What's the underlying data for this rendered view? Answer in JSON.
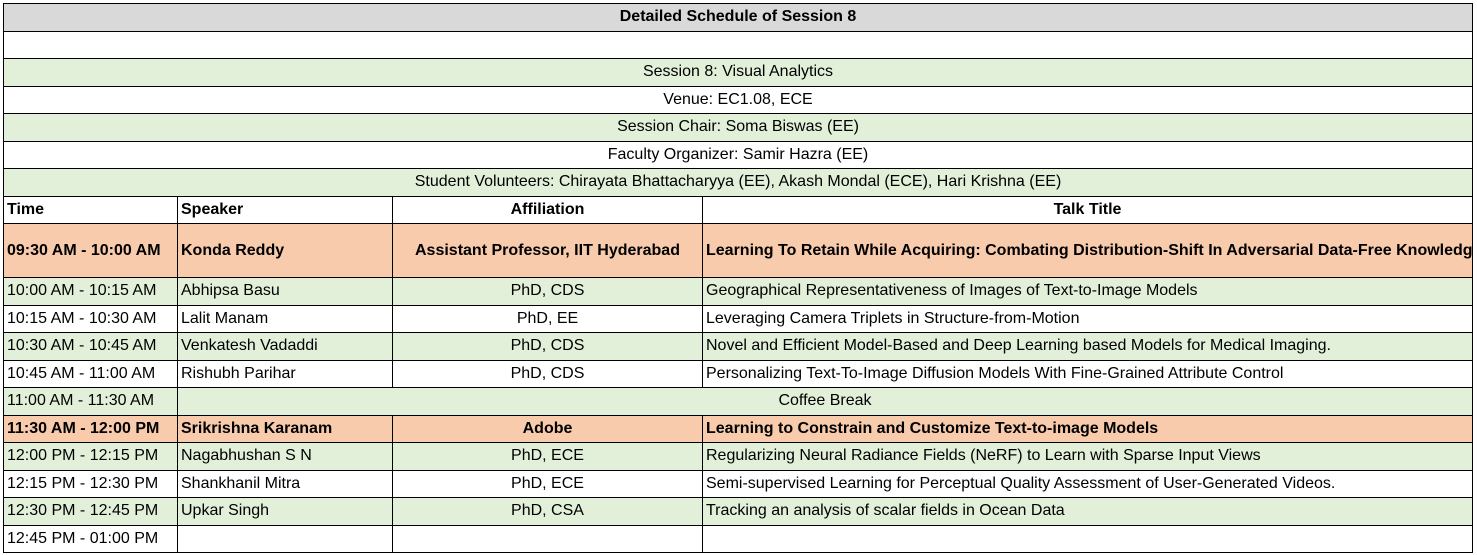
{
  "header": {
    "title": "Detailed Schedule of Session 8",
    "session": "Session 8: Visual Analytics",
    "venue": "Venue: EC1.08, ECE",
    "chair": "Session Chair: Soma Biswas (EE)",
    "organizer": "Faculty Organizer: Samir Hazra (EE)",
    "volunteers": "Student Volunteers: Chirayata Bhattacharyya (EE), Akash Mondal (ECE), Hari Krishna (EE)"
  },
  "columns": [
    "Time",
    "Speaker",
    "Affiliation",
    "Talk Title"
  ],
  "rows": [
    {
      "time": "09:30 AM - 10:00 AM",
      "speaker": "Konda Reddy",
      "affiliation": "Assistant Professor, IIT Hyderabad",
      "title": "Learning To Retain While Acquiring: Combating Distribution-Shift In Adversarial Data-Free Knowledge Distillation"
    },
    {
      "time": "10:00 AM - 10:15 AM",
      "speaker": "Abhipsa Basu",
      "affiliation": "PhD, CDS",
      "title": "Geographical Representativeness of Images of Text-to-Image Models"
    },
    {
      "time": "10:15 AM - 10:30 AM",
      "speaker": "Lalit Manam",
      "affiliation": "PhD, EE",
      "title": "Leveraging Camera Triplets in Structure-from-Motion"
    },
    {
      "time": "10:30 AM - 10:45 AM",
      "speaker": "Venkatesh Vadaddi",
      "affiliation": "PhD, CDS",
      "title": "Novel and Efficient Model-Based and Deep Learning based Models for Medical Imaging."
    },
    {
      "time": "10:45 AM - 11:00 AM",
      "speaker": "Rishubh Parihar",
      "affiliation": "PhD, CDS",
      "title": "Personalizing Text-To-Image Diffusion Models With Fine-Grained Attribute Control"
    },
    {
      "time": "11:00 AM - 11:30 AM",
      "break_label": "Coffee Break"
    },
    {
      "time": "11:30 AM - 12:00 PM",
      "speaker": "Srikrishna Karanam",
      "affiliation": "Adobe",
      "title": "Learning to Constrain and Customize Text-to-image Models"
    },
    {
      "time": "12:00 PM - 12:15 PM",
      "speaker": "Nagabhushan S N",
      "affiliation": "PhD, ECE",
      "title": "Regularizing Neural Radiance Fields (NeRF) to Learn with Sparse Input Views"
    },
    {
      "time": "12:15 PM - 12:30 PM",
      "speaker": "Shankhanil Mitra",
      "affiliation": "PhD, ECE",
      "title": "Semi-supervised Learning for Perceptual Quality Assessment of User-Generated Videos."
    },
    {
      "time": "12:30 PM - 12:45 PM",
      "speaker": "Upkar Singh",
      "affiliation": "PhD, CSA",
      "title": "Tracking an analysis of scalar fields in Ocean Data"
    },
    {
      "time": "12:45 PM - 01:00 PM",
      "speaker": "",
      "affiliation": "",
      "title": ""
    }
  ],
  "colors": {
    "title_bg": "#d9d9d9",
    "green_row": "#e2f0d9",
    "keynote_row": "#f8cbad"
  }
}
